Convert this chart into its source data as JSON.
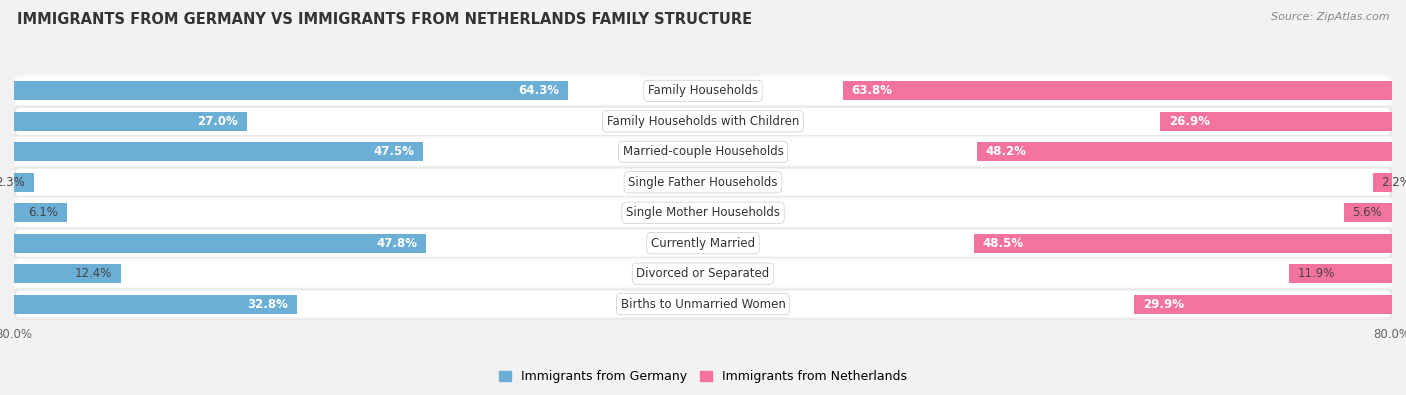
{
  "title": "IMMIGRANTS FROM GERMANY VS IMMIGRANTS FROM NETHERLANDS FAMILY STRUCTURE",
  "source": "Source: ZipAtlas.com",
  "categories": [
    "Family Households",
    "Family Households with Children",
    "Married-couple Households",
    "Single Father Households",
    "Single Mother Households",
    "Currently Married",
    "Divorced or Separated",
    "Births to Unmarried Women"
  ],
  "germany_values": [
    64.3,
    27.0,
    47.5,
    2.3,
    6.1,
    47.8,
    12.4,
    32.8
  ],
  "netherlands_values": [
    63.8,
    26.9,
    48.2,
    2.2,
    5.6,
    48.5,
    11.9,
    29.9
  ],
  "germany_color": "#6BAED6",
  "netherlands_color": "#F472A0",
  "germany_color_light": "#B8D4EA",
  "netherlands_color_light": "#F9B8CC",
  "axis_max": 80.0,
  "background_color": "#f2f2f2",
  "row_bg_light": "#f8f8f8",
  "row_bg_dark": "#e8e8e8",
  "bar_height": 0.62,
  "label_fontsize": 8.5,
  "title_fontsize": 10.5,
  "legend_label_germany": "Immigrants from Germany",
  "legend_label_netherlands": "Immigrants from Netherlands",
  "white_text_threshold": 20.0
}
